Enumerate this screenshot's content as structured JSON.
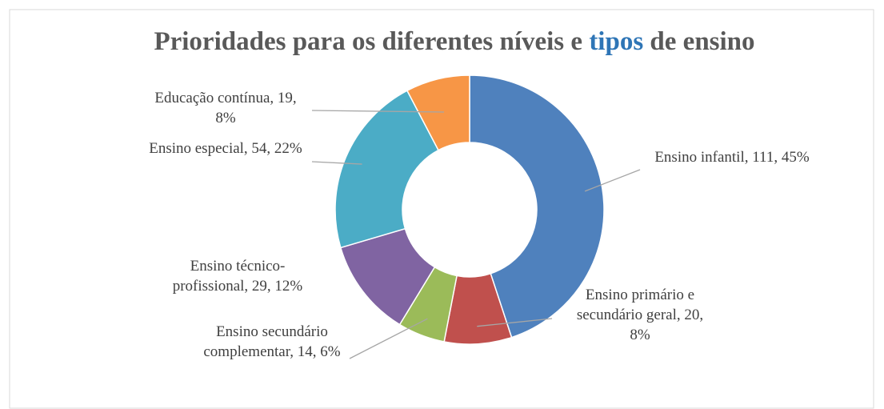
{
  "chart_data": {
    "type": "donut",
    "title": "Prioridades para os diferentes níveis e tipos de ensino",
    "values": [
      111,
      20,
      14,
      29,
      54,
      19
    ],
    "value_labels": [
      "Ensino infantil, 111, 45%",
      "Ensino primário e secundário geral, 20, 8%",
      "Ensino secundário complementar, 14, 6%",
      "Ensino técnico-profissional, 29, 12%",
      "Ensino especial, 54, 22%",
      "Educação contínua, 19, 8%"
    ],
    "colors": [
      "#4f81bd",
      "#c0504d",
      "#9bbb59",
      "#8064a2",
      "#4bacc6",
      "#f79646"
    ]
  }
}
